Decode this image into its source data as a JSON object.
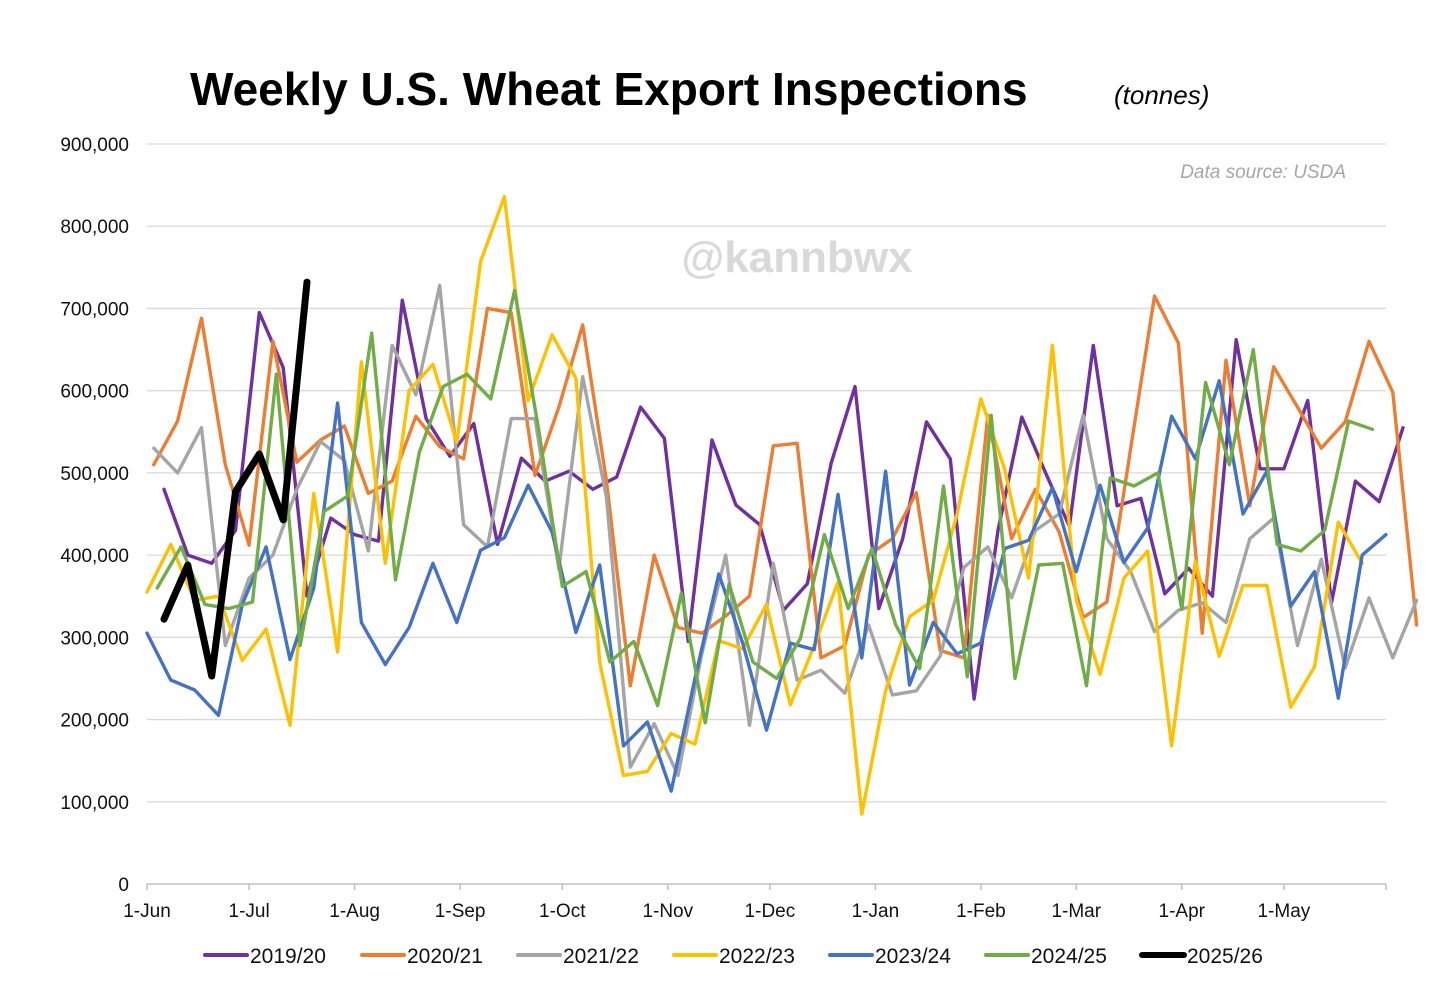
{
  "chart_data": {
    "type": "line",
    "title": "Weekly U.S. Wheat Export Inspections",
    "subtitle": "(tonnes)",
    "source_note": "Data source: USDA",
    "watermark": "@kannbwx",
    "ylim": [
      0,
      900000
    ],
    "yticks": [
      0,
      100000,
      200000,
      300000,
      400000,
      500000,
      600000,
      700000,
      800000,
      900000
    ],
    "ytick_labels": [
      "0",
      "100,000",
      "200,000",
      "300,000",
      "400,000",
      "500,000",
      "600,000",
      "700,000",
      "800,000",
      "900,000"
    ],
    "xlim": [
      "2025-06-01",
      "2026-05-31"
    ],
    "xticks": [
      "2025-06-01",
      "2025-07-01",
      "2025-08-01",
      "2025-09-01",
      "2025-10-01",
      "2025-11-01",
      "2025-12-01",
      "2026-01-01",
      "2026-02-01",
      "2026-03-01",
      "2026-04-01",
      "2026-05-01"
    ],
    "xtick_labels": [
      "1-Jun",
      "1-Jul",
      "1-Aug",
      "1-Sep",
      "1-Oct",
      "1-Nov",
      "1-Dec",
      "1-Jan",
      "1-Feb",
      "1-Mar",
      "1-Apr",
      "1-May"
    ],
    "grid": "horizontal",
    "legend_position": "bottom",
    "series": [
      {
        "name": "2019/20",
        "color": "#7030A0",
        "start": "2025-06-06",
        "values": [
          480000,
          400000,
          390000,
          430000,
          695000,
          628000,
          350000,
          445000,
          425000,
          417000,
          710000,
          566000,
          520000,
          560000,
          413000,
          518000,
          490000,
          502000,
          480000,
          495000,
          580000,
          542000,
          295000,
          540000,
          461000,
          437000,
          333000,
          365000,
          512000,
          605000,
          335000,
          420000,
          562000,
          517000,
          225000,
          430000,
          568000,
          500000,
          435000,
          655000,
          460000,
          469000,
          353000,
          384000,
          350000,
          662000,
          505000,
          505000,
          588000,
          342000,
          490000,
          465000,
          555000
        ]
      },
      {
        "name": "2020/21",
        "color": "#ED7D31",
        "start": "2025-06-03",
        "values": [
          510000,
          563000,
          688000,
          510000,
          412000,
          660000,
          513000,
          540000,
          557000,
          475000,
          490000,
          569000,
          532000,
          517000,
          700000,
          695000,
          497000,
          580000,
          680000,
          490000,
          241000,
          400000,
          312000,
          305000,
          326000,
          350000,
          533000,
          536000,
          275000,
          290000,
          400000,
          420000,
          476000,
          284000,
          275000,
          570000,
          420000,
          480000,
          428000,
          324000,
          343000,
          530000,
          715000,
          658000,
          305000,
          637000,
          460000,
          629000,
          580000,
          530000,
          562000,
          660000,
          598000,
          315000
        ]
      },
      {
        "name": "2021/22",
        "color": "#A5A5A5",
        "start": "2025-06-03",
        "values": [
          530000,
          500000,
          555000,
          290000,
          372000,
          400000,
          480000,
          538000,
          515000,
          405000,
          655000,
          595000,
          728000,
          437000,
          410000,
          566000,
          566000,
          383000,
          617000,
          470000,
          142000,
          195000,
          132000,
          280000,
          400000,
          193000,
          390000,
          248000,
          260000,
          232000,
          315000,
          230000,
          235000,
          277000,
          385000,
          410000,
          348000,
          430000,
          450000,
          570000,
          420000,
          380000,
          307000,
          333000,
          342000,
          318000,
          420000,
          445000,
          290000,
          395000,
          263000,
          348000,
          275000,
          345000
        ]
      },
      {
        "name": "2022/23",
        "color": "#FFC000",
        "start": "2025-06-01",
        "values": [
          355000,
          413000,
          345000,
          350000,
          272000,
          310000,
          193000,
          475000,
          282000,
          635000,
          390000,
          600000,
          632000,
          537000,
          757000,
          836000,
          588000,
          668000,
          615000,
          270000,
          132000,
          137000,
          183000,
          170000,
          296000,
          286000,
          340000,
          218000,
          290000,
          367000,
          85000,
          235000,
          325000,
          345000,
          450000,
          590000,
          504000,
          372000,
          655000,
          345000,
          255000,
          372000,
          405000,
          168000,
          393000,
          277000,
          363000,
          363000,
          215000,
          264000,
          440000,
          390000
        ]
      },
      {
        "name": "2023/24",
        "color": "#4472C4",
        "start": "2025-06-01",
        "values": [
          305000,
          248000,
          236000,
          205000,
          340000,
          410000,
          273000,
          360000,
          585000,
          318000,
          267000,
          312000,
          390000,
          318000,
          406000,
          421000,
          485000,
          428000,
          306000,
          388000,
          168000,
          197000,
          113000,
          250000,
          377000,
          293000,
          187000,
          293000,
          285000,
          474000,
          275000,
          502000,
          242000,
          318000,
          280000,
          293000,
          408000,
          418000,
          482000,
          380000,
          485000,
          391000,
          433000,
          569000,
          517000,
          612000,
          450000,
          502000,
          338000,
          380000,
          226000,
          400000,
          425000
        ]
      },
      {
        "name": "2024/25",
        "color": "#70AD47",
        "start": "2025-06-04",
        "values": [
          360000,
          410000,
          340000,
          335000,
          343000,
          620000,
          290000,
          453000,
          472000,
          670000,
          370000,
          525000,
          605000,
          620000,
          590000,
          722000,
          555000,
          362000,
          380000,
          270000,
          295000,
          217000,
          354000,
          196000,
          365000,
          270000,
          250000,
          299000,
          425000,
          335000,
          408000,
          315000,
          262000,
          484000,
          252000,
          570000,
          250000,
          388000,
          390000,
          241000,
          494000,
          484000,
          500000,
          334000,
          610000,
          510000,
          650000,
          413000,
          405000,
          430000,
          563000,
          553000
        ]
      },
      {
        "name": "2025/26",
        "color": "#000000",
        "start": "2025-06-06",
        "values": [
          322000,
          388000,
          253000,
          477000,
          523000,
          443000,
          732000
        ]
      }
    ]
  }
}
